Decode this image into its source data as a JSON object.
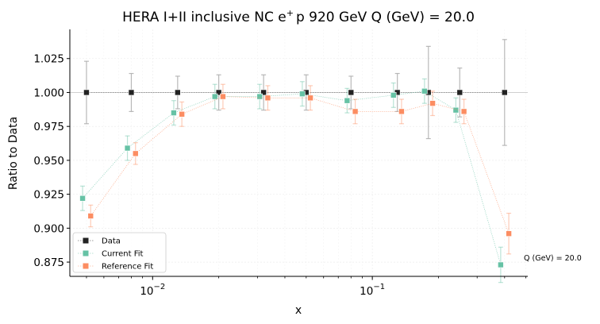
{
  "chart_data": {
    "type": "line",
    "title_main": "HERA I+II inclusive NC e",
    "title_sup": "+",
    "title_rest": "p 920 GeV Q (GeV) = 20.0",
    "xlabel": "x",
    "ylabel": "Ratio to Data",
    "xscale": "log",
    "xlim": [
      0.0042,
      0.51
    ],
    "ylim": [
      0.8645,
      1.0465
    ],
    "yticks": [
      0.875,
      0.9,
      0.925,
      0.95,
      0.975,
      1.0,
      1.025
    ],
    "ytick_labels": [
      "0.875",
      "0.900",
      "0.925",
      "0.950",
      "0.975",
      "1.000",
      "1.025"
    ],
    "xticks": [
      {
        "value": 0.01,
        "base": "10",
        "exp": "−2"
      },
      {
        "value": 0.1,
        "base": "10",
        "exp": "−1"
      }
    ],
    "grid": true,
    "legend_position": "lower-left",
    "annotation": "Q (GeV) = 20.0",
    "series": [
      {
        "name": "Data",
        "color": "#222222",
        "error_color": "#b0b0b0",
        "marker": "square",
        "x": [
          0.005,
          0.008,
          0.013,
          0.02,
          0.032,
          0.05,
          0.08,
          0.13,
          0.18,
          0.25,
          0.4
        ],
        "y": [
          1.0,
          1.0,
          1.0,
          1.0,
          1.0,
          1.0,
          1.0,
          1.0,
          1.0,
          1.0,
          1.0
        ],
        "yerr": [
          0.023,
          0.014,
          0.012,
          0.013,
          0.013,
          0.013,
          0.012,
          0.014,
          0.034,
          0.018,
          0.039
        ]
      },
      {
        "name": "Current Fit",
        "color": "#66c2a5",
        "marker": "square",
        "x": [
          0.005,
          0.008,
          0.013,
          0.02,
          0.032,
          0.05,
          0.08,
          0.13,
          0.18,
          0.25,
          0.4
        ],
        "y": [
          0.922,
          0.959,
          0.985,
          0.997,
          0.997,
          0.999,
          0.994,
          0.998,
          1.001,
          0.987,
          0.873
        ],
        "yerr": [
          0.009,
          0.009,
          0.009,
          0.009,
          0.009,
          0.009,
          0.009,
          0.009,
          0.009,
          0.009,
          0.013
        ]
      },
      {
        "name": "Reference Fit",
        "color": "#fc8d62",
        "marker": "square",
        "x": [
          0.005,
          0.008,
          0.013,
          0.02,
          0.032,
          0.05,
          0.08,
          0.13,
          0.18,
          0.25,
          0.4
        ],
        "y": [
          0.909,
          0.955,
          0.984,
          0.997,
          0.996,
          0.996,
          0.986,
          0.986,
          0.992,
          0.986,
          0.896
        ],
        "yerr": [
          0.008,
          0.008,
          0.009,
          0.009,
          0.009,
          0.009,
          0.009,
          0.009,
          0.009,
          0.009,
          0.015
        ]
      }
    ]
  }
}
